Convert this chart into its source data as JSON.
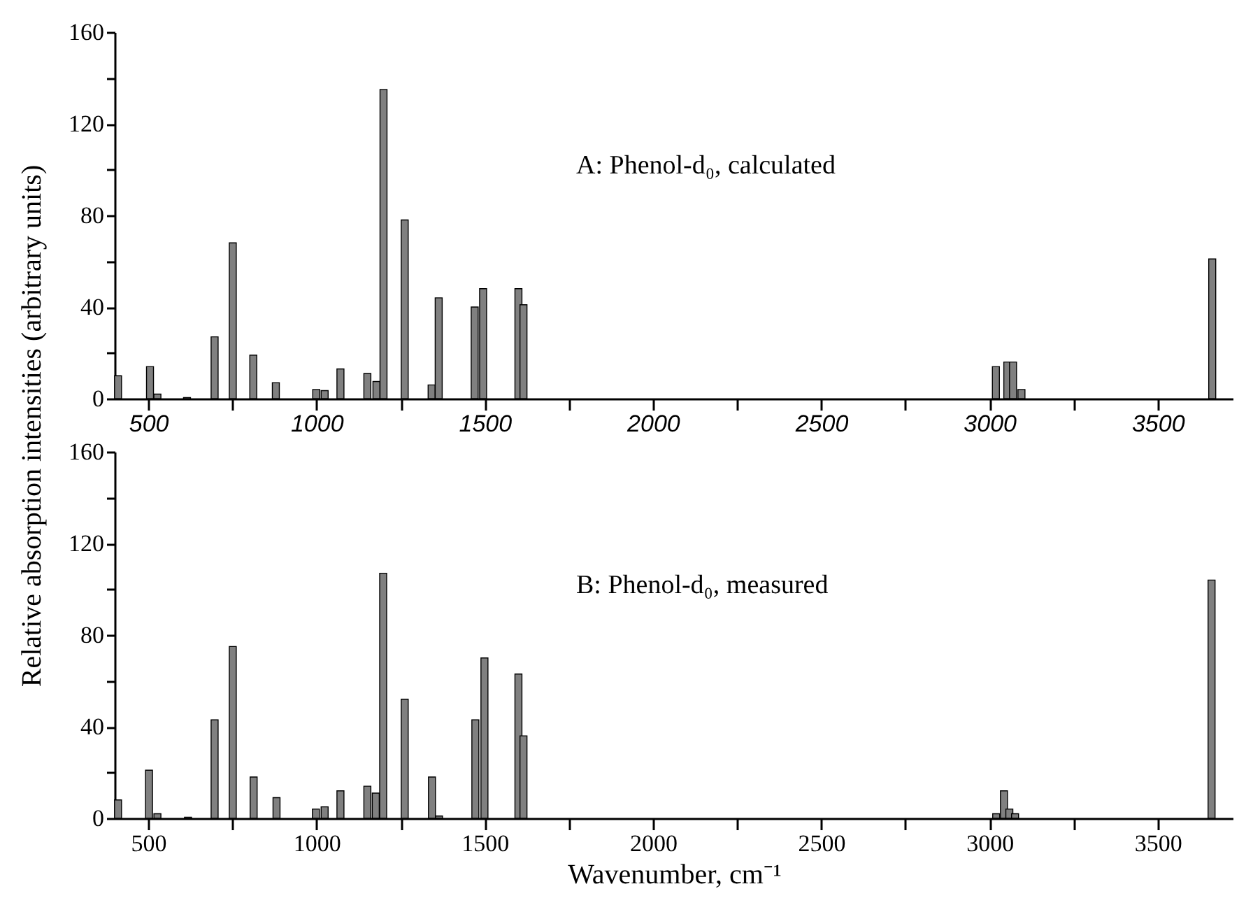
{
  "chart_data": [
    {
      "type": "bar",
      "ylabel": "Relative absorption intensities (arbitrary units)",
      "annotations": [
        "A: Phenol-d₀, calculated"
      ],
      "color": "#808080",
      "x": [
        410,
        505,
        527,
        615,
        697,
        751,
        812,
        879,
        999,
        1024,
        1071,
        1151,
        1178,
        1199,
        1262,
        1342,
        1363,
        1470,
        1495,
        1600,
        1615,
        3019,
        3053,
        3070,
        3095,
        3662
      ],
      "values": [
        10,
        14,
        2,
        0.5,
        27,
        68,
        19,
        7,
        4,
        3.5,
        13,
        11,
        7.5,
        135,
        78,
        6,
        44,
        40,
        48,
        48,
        41,
        14,
        16,
        16,
        4,
        61
      ],
      "xlim": [
        400,
        3725
      ],
      "xticks": [
        500,
        {
          "value": 750,
          "label": null
        },
        1000,
        {
          "value": 1250,
          "label": null
        },
        1500,
        {
          "value": 1750,
          "label": null
        },
        2000,
        {
          "value": 2250,
          "label": null
        },
        2500,
        {
          "value": 2750,
          "label": null
        },
        3000,
        {
          "value": 3250,
          "label": null
        },
        3500
      ],
      "ylim": [
        0,
        160
      ],
      "yticks": [
        0,
        {
          "value": 20,
          "label": null
        },
        40,
        {
          "value": 60,
          "label": null
        },
        80,
        {
          "value": 100,
          "label": null
        },
        120,
        {
          "value": 140,
          "label": null
        },
        160
      ]
    },
    {
      "type": "bar",
      "xlabel": "Wavenumber, cm⁻¹",
      "annotations": [
        "B: Phenol-d₀, measured"
      ],
      "color": "#808080",
      "x": [
        410,
        502,
        527,
        618,
        697,
        751,
        813,
        881,
        998,
        1024,
        1071,
        1151,
        1176,
        1198,
        1262,
        1343,
        1364,
        1472,
        1499,
        1600,
        1615,
        3020,
        3043,
        3059,
        3076,
        3660
      ],
      "values": [
        8,
        21,
        2,
        0.5,
        43,
        75,
        18,
        9,
        4,
        5,
        12,
        14,
        11,
        107,
        52,
        18,
        1,
        43,
        70,
        63,
        36,
        2,
        12,
        4,
        2,
        104
      ],
      "xlim": [
        400,
        3725
      ],
      "xticks": [
        500,
        {
          "value": 750,
          "label": null
        },
        1000,
        {
          "value": 1250,
          "label": null
        },
        1500,
        {
          "value": 1750,
          "label": null
        },
        2000,
        {
          "value": 2250,
          "label": null
        },
        2500,
        {
          "value": 2750,
          "label": null
        },
        3000,
        {
          "value": 3250,
          "label": null
        },
        3500
      ],
      "ylim": [
        0,
        160
      ],
      "yticks": [
        0,
        {
          "value": 20,
          "label": null
        },
        40,
        {
          "value": 60,
          "label": null
        },
        80,
        {
          "value": 100,
          "label": null
        },
        120,
        {
          "value": 140,
          "label": null
        },
        160
      ]
    }
  ]
}
